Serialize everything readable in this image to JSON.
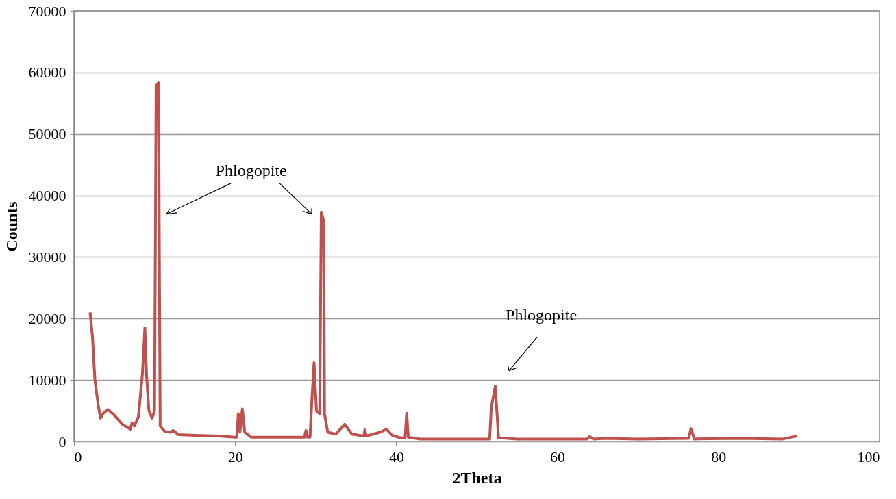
{
  "chart_data": {
    "type": "line",
    "xlabel": "2Theta",
    "ylabel": "Counts",
    "xlim": [
      0,
      100
    ],
    "xticks": [
      0,
      20,
      40,
      60,
      80,
      100
    ],
    "ylim": [
      0,
      70000
    ],
    "yticks": [
      0,
      10000,
      20000,
      30000,
      40000,
      50000,
      60000,
      70000
    ],
    "grid": "y",
    "marker": "none",
    "line_style": "solid",
    "series": [
      {
        "color": "#c0504d",
        "x": [
          2.0,
          2.3,
          2.6,
          3.0,
          3.3,
          3.6,
          4.2,
          5.0,
          6.0,
          7.0,
          7.2,
          7.5,
          8.0,
          8.5,
          8.8,
          9.0,
          9.3,
          9.7,
          10.0,
          10.2,
          10.5,
          10.7,
          11.3,
          12.0,
          12.3,
          13.0,
          15,
          18,
          20.0,
          20.2,
          20.4,
          20.6,
          20.9,
          21.2,
          22,
          28,
          28.6,
          28.8,
          29.0,
          29.3,
          29.5,
          29.8,
          30.1,
          30.5,
          30.7,
          31.0,
          31.1,
          31.5,
          32.5,
          33.6,
          34.5,
          36.0,
          36.1,
          36.3,
          38.0,
          38.8,
          39.5,
          40.5,
          41.1,
          41.3,
          41.5,
          43,
          47,
          50.5,
          51.6,
          51.8,
          52.3,
          52.7,
          55,
          60,
          63.7,
          64.0,
          64.5,
          66,
          70,
          76.3,
          76.6,
          77.0,
          82.7,
          88,
          89.8
        ],
        "values": [
          21000,
          17000,
          10000,
          6000,
          3800,
          4500,
          5200,
          4300,
          2800,
          2000,
          3000,
          2500,
          4000,
          11000,
          18500,
          11000,
          5000,
          3800,
          5000,
          58000,
          58300,
          2500,
          1600,
          1500,
          1800,
          1100,
          1000,
          900,
          700,
          700,
          4500,
          1500,
          5300,
          1500,
          700,
          700,
          700,
          1800,
          700,
          700,
          6000,
          12800,
          5000,
          4500,
          37300,
          35800,
          4500,
          1500,
          1200,
          2800,
          1200,
          900,
          1900,
          900,
          1500,
          2000,
          1000,
          600,
          600,
          4600,
          700,
          400,
          400,
          400,
          400,
          5500,
          9000,
          600,
          400,
          400,
          400,
          800,
          400,
          500,
          400,
          500,
          2100,
          400,
          500,
          400,
          900
        ]
      }
    ],
    "annotations": [
      "Phlogopite",
      "Phlogopite"
    ]
  }
}
